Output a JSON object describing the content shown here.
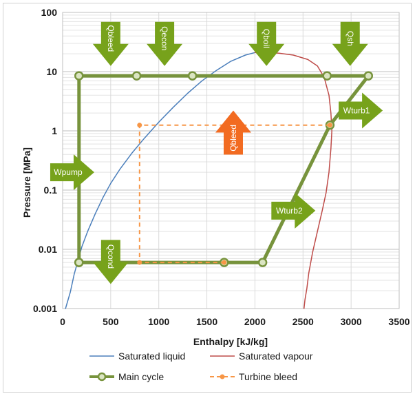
{
  "chart_data": {
    "type": "line",
    "xlabel": "Enthalpy [kJ/kg]",
    "ylabel": "Pressure [MPa]",
    "xlim": [
      0,
      3500
    ],
    "ylim": [
      0.001,
      100
    ],
    "y_scale": "log",
    "grid": true,
    "legend_position": "bottom",
    "x_ticks": [
      "0",
      "500",
      "1000",
      "1500",
      "2000",
      "2500",
      "3000",
      "3500"
    ],
    "y_ticks": [
      "0.001",
      "0.01",
      "0.1",
      "1",
      "10",
      "100"
    ],
    "series": [
      {
        "name": "Saturated liquid",
        "color": "#4a7ebb",
        "marker": "none",
        "style": "solid",
        "x": [
          30,
          80,
          120,
          160,
          200,
          260,
          340,
          420,
          500,
          600,
          720,
          850,
          1000,
          1150,
          1300,
          1450,
          1600,
          1750,
          1900,
          2000
        ],
        "y": [
          0.001,
          0.0019,
          0.0038,
          0.0065,
          0.011,
          0.02,
          0.04,
          0.075,
          0.13,
          0.23,
          0.42,
          0.75,
          1.4,
          2.5,
          4.3,
          7.0,
          10.5,
          15.0,
          19.0,
          21.0
        ]
      },
      {
        "name": "Saturated vapour",
        "color": "#be4b48",
        "marker": "none",
        "style": "solid",
        "x": [
          2000,
          2100,
          2250,
          2400,
          2550,
          2650,
          2720,
          2770,
          2790,
          2800,
          2790,
          2770,
          2740,
          2700,
          2650,
          2600,
          2560,
          2540,
          2520,
          2510
        ],
        "y": [
          21.0,
          21.2,
          20.5,
          19.0,
          16.0,
          12.5,
          8.0,
          4.0,
          2.0,
          1.0,
          0.5,
          0.2,
          0.09,
          0.045,
          0.02,
          0.009,
          0.004,
          0.0022,
          0.0014,
          0.001
        ]
      },
      {
        "name": "Main cycle",
        "color": "#77933c",
        "marker": "circle",
        "style": "thick",
        "x": [
          170,
          170,
          770,
          1350,
          2750,
          3180,
          2780,
          2080,
          1680,
          170
        ],
        "y": [
          0.006,
          8.5,
          8.5,
          8.5,
          8.5,
          8.5,
          1.25,
          0.006,
          0.006,
          0.006
        ]
      },
      {
        "name": "Turbine bleed",
        "color": "#f79646",
        "marker": "circle",
        "style": "dashed",
        "x": [
          2780,
          800,
          800,
          1680
        ],
        "y": [
          1.25,
          1.25,
          0.006,
          0.006
        ]
      }
    ],
    "annotations": [
      {
        "label": "Qbleed",
        "x": 500,
        "y": 25,
        "direction": "down",
        "color": "#77a21b"
      },
      {
        "label": "Qecon",
        "x": 1060,
        "y": 25,
        "direction": "down",
        "color": "#77a21b"
      },
      {
        "label": "Qboil",
        "x": 2120,
        "y": 25,
        "direction": "down",
        "color": "#77a21b"
      },
      {
        "label": "Qsh",
        "x": 2990,
        "y": 25,
        "direction": "down",
        "color": "#77a21b"
      },
      {
        "label": "Qbleed",
        "x": 1775,
        "y": 1.1,
        "direction": "up",
        "color": "#f26b21"
      },
      {
        "label": "Wturb1",
        "x": 3100,
        "y": 2.2,
        "direction": "right",
        "color": "#77a21b"
      },
      {
        "label": "Wpump",
        "x": 100,
        "y": 0.2,
        "direction": "right",
        "color": "#77a21b"
      },
      {
        "label": "Wturb2",
        "x": 2400,
        "y": 0.045,
        "direction": "right",
        "color": "#77a21b"
      },
      {
        "label": "Qcond",
        "x": 500,
        "y": 0.0052,
        "direction": "down",
        "color": "#77a21b"
      }
    ]
  }
}
